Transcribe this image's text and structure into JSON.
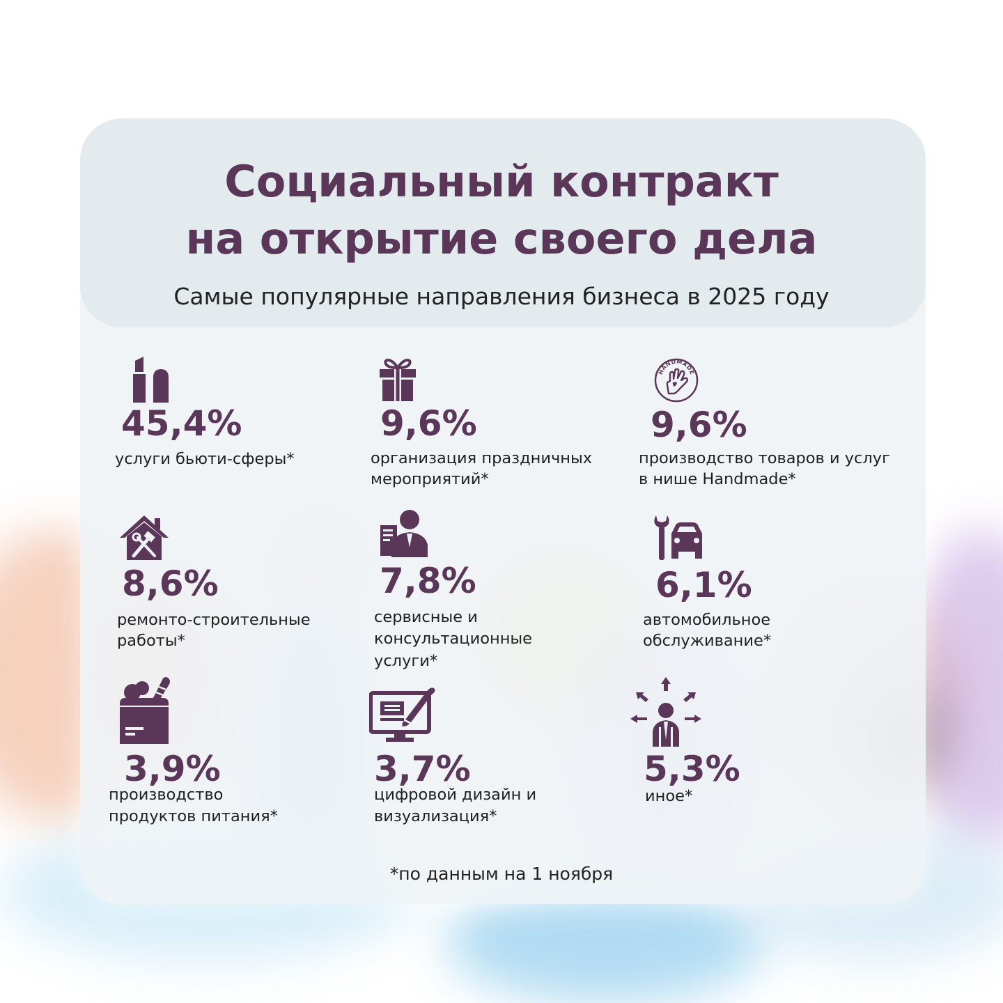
{
  "title_line1": "Социальный контракт",
  "title_line2": "на открытие своего дела",
  "subtitle": "Самые популярные направления бизнеса в 2025 году",
  "colors": {
    "accent": "#5a3658",
    "card": "#eef2f5",
    "header": "#e4ebef"
  },
  "items": [
    {
      "icon": "lipstick-icon",
      "percent": "45,4%",
      "label_lines": [
        "услуги бьюти-сферы*"
      ]
    },
    {
      "icon": "gift-icon",
      "percent": "9,6%",
      "label_lines": [
        "организация праздничных",
        "мероприятий*"
      ]
    },
    {
      "icon": "handmade-badge-icon",
      "icon_text": "HANDMADE",
      "percent": "9,6%",
      "label_lines": [
        "производство товаров и услуг",
        "в нише Handmade*"
      ]
    },
    {
      "icon": "house-tools-icon",
      "percent": "8,6%",
      "label_lines": [
        "ремонто-строительные",
        "работы*"
      ]
    },
    {
      "icon": "consultant-icon",
      "percent": "7,8%",
      "label_lines": [
        "сервисные и",
        "консультационные",
        "услуги*"
      ]
    },
    {
      "icon": "wrench-car-icon",
      "percent": "6,1%",
      "label_lines": [
        "автомобильное",
        "обслуживание*"
      ]
    },
    {
      "icon": "grocery-bag-icon",
      "percent": "3,9%",
      "label_lines": [
        "производство",
        "продуктов питания*"
      ]
    },
    {
      "icon": "monitor-brush-icon",
      "percent": "3,7%",
      "label_lines": [
        "цифровой дизайн и",
        "визуализация*"
      ]
    },
    {
      "icon": "person-arrows-icon",
      "percent": "5,3%",
      "label_lines": [
        "иное*"
      ]
    }
  ],
  "footnote": "*по данным на 1 ноября"
}
